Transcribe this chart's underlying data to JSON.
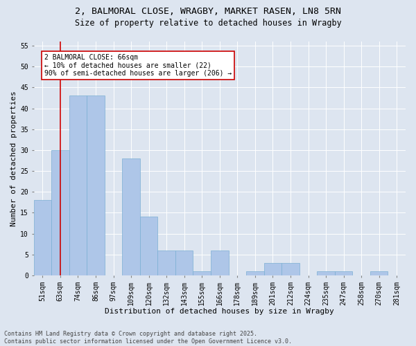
{
  "title_line1": "2, BALMORAL CLOSE, WRAGBY, MARKET RASEN, LN8 5RN",
  "title_line2": "Size of property relative to detached houses in Wragby",
  "xlabel": "Distribution of detached houses by size in Wragby",
  "ylabel": "Number of detached properties",
  "categories": [
    "51sqm",
    "63sqm",
    "74sqm",
    "86sqm",
    "97sqm",
    "109sqm",
    "120sqm",
    "132sqm",
    "143sqm",
    "155sqm",
    "166sqm",
    "178sqm",
    "189sqm",
    "201sqm",
    "212sqm",
    "224sqm",
    "235sqm",
    "247sqm",
    "258sqm",
    "270sqm",
    "281sqm"
  ],
  "values": [
    18,
    30,
    43,
    43,
    0,
    28,
    14,
    6,
    6,
    1,
    6,
    0,
    1,
    3,
    3,
    0,
    1,
    1,
    0,
    1,
    0
  ],
  "bar_color": "#aec6e8",
  "bar_edge_color": "#7bafd4",
  "vline_x": 1,
  "vline_color": "#cc0000",
  "annotation_text": "2 BALMORAL CLOSE: 66sqm\n← 10% of detached houses are smaller (22)\n90% of semi-detached houses are larger (206) →",
  "annotation_box_color": "#ffffff",
  "annotation_box_edge_color": "#cc0000",
  "background_color": "#dde5f0",
  "plot_bg_color": "#dde5f0",
  "footer_text": "Contains HM Land Registry data © Crown copyright and database right 2025.\nContains public sector information licensed under the Open Government Licence v3.0.",
  "ylim": [
    0,
    56
  ],
  "yticks": [
    0,
    5,
    10,
    15,
    20,
    25,
    30,
    35,
    40,
    45,
    50,
    55
  ],
  "title_fontsize": 9.5,
  "subtitle_fontsize": 8.5,
  "axis_fontsize": 8,
  "tick_fontsize": 7,
  "annotation_fontsize": 7,
  "footer_fontsize": 6
}
